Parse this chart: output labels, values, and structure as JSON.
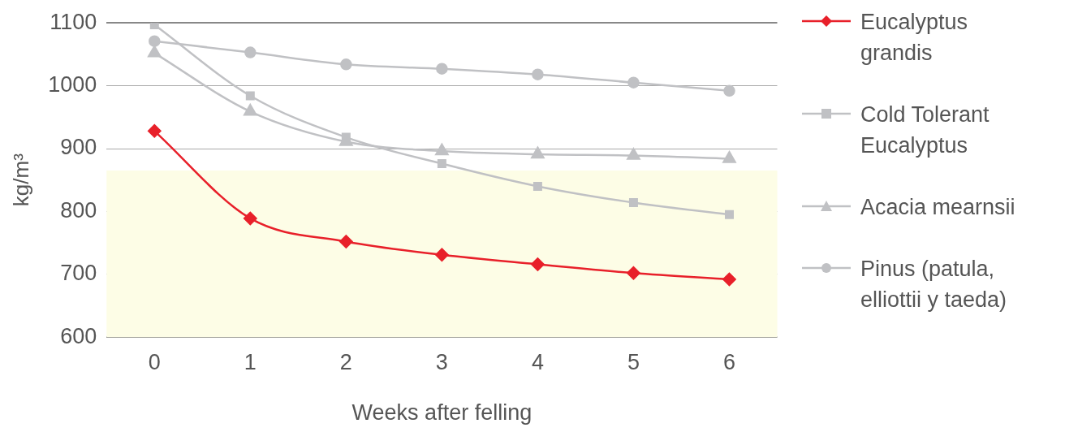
{
  "chart_data": {
    "type": "line",
    "xlabel": "Weeks after felling",
    "ylabel": "kg/m³",
    "categories": [
      "0",
      "1",
      "2",
      "3",
      "4",
      "5",
      "6"
    ],
    "ylim": [
      600,
      1100
    ],
    "yticks": [
      600,
      700,
      800,
      900,
      1000,
      1100
    ],
    "grid": "y",
    "legend": "right",
    "bands": [
      {
        "axis": "y",
        "from": 600,
        "to": 865,
        "color": "#fdfde6"
      }
    ],
    "series": [
      {
        "name": "Eucalyptus grandis",
        "color": "#e8202a",
        "marker": "diamond",
        "values": [
          928,
          789,
          752,
          731,
          716,
          702,
          692
        ]
      },
      {
        "name": "Cold Tolerant Eucalyptus",
        "color": "#c0c1c4",
        "marker": "square",
        "values": [
          1097,
          984,
          918,
          876,
          840,
          814,
          795
        ]
      },
      {
        "name": "Acacia mearnsii",
        "color": "#c0c1c4",
        "marker": "triangle",
        "values": [
          1052,
          959,
          911,
          896,
          891,
          889,
          884
        ]
      },
      {
        "name": "Pinus (patula, elliottii y taeda)",
        "color": "#c0c1c4",
        "marker": "circle",
        "values": [
          1071,
          1053,
          1034,
          1027,
          1018,
          1005,
          992
        ]
      }
    ]
  }
}
